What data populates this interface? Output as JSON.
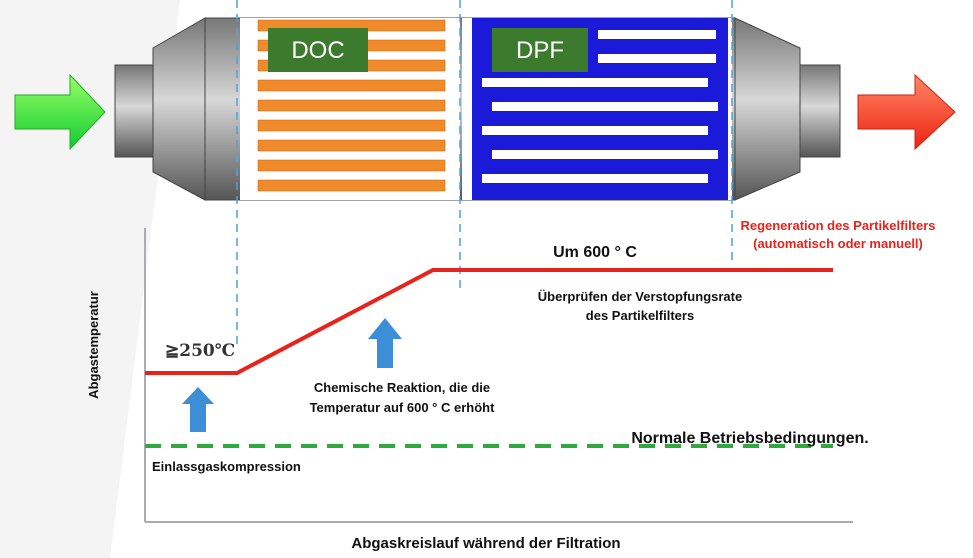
{
  "components": {
    "doc_label": "DOC",
    "dpf_label": "DPF"
  },
  "graph": {
    "y_axis_label": "Abgastemperatur",
    "x_axis_label": "Abgaskreislauf während der Filtration",
    "start_temperature": "≧250℃",
    "peak_temperature": "Um 600 ° C",
    "inlet_note": "Einlassgaskompression",
    "reaction_note": [
      "Chemische Reaktion, die die",
      "Temperatur auf 600 ° C erhöht"
    ],
    "check_note": [
      "Überprüfen der Verstopfungsrate",
      "des Partikelfilters"
    ],
    "regeneration_note": [
      "Regeneration des Partikelfilters",
      "(automatisch oder manuell)"
    ],
    "normal_note": "Normale Betriebsbedingungen."
  }
}
